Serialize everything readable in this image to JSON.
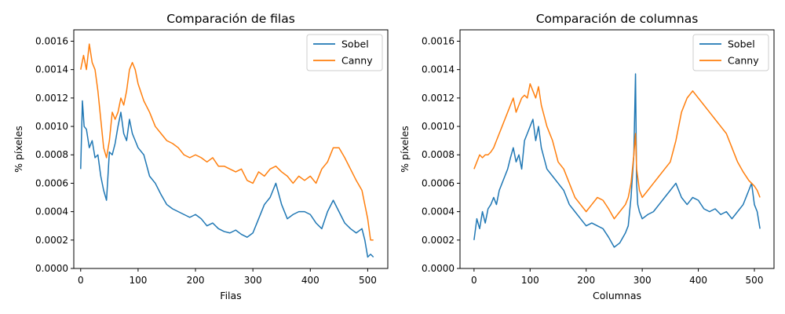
{
  "chart_data": [
    {
      "type": "line",
      "title": "Comparación de filas",
      "xlabel": "Filas",
      "ylabel": "% píxeles",
      "xlim": [
        -12,
        535
      ],
      "ylim": [
        0,
        0.00168
      ],
      "xticks": [
        0,
        100,
        200,
        300,
        400,
        500
      ],
      "yticks": [
        0,
        0.0002,
        0.0004,
        0.0006,
        0.0008,
        0.001,
        0.0012,
        0.0014,
        0.0016
      ],
      "ytick_labels": [
        "0.0000",
        "0.0002",
        "0.0004",
        "0.0006",
        "0.0008",
        "0.0010",
        "0.0012",
        "0.0014",
        "0.0016"
      ],
      "legend": "top-right",
      "series": [
        {
          "name": "Sobel",
          "color": "#1f77b4",
          "x": [
            0,
            3,
            6,
            10,
            15,
            20,
            25,
            30,
            35,
            40,
            45,
            50,
            55,
            60,
            65,
            70,
            75,
            80,
            85,
            90,
            95,
            100,
            110,
            120,
            130,
            140,
            150,
            160,
            170,
            180,
            190,
            200,
            210,
            220,
            230,
            240,
            250,
            260,
            270,
            280,
            290,
            300,
            310,
            320,
            330,
            340,
            350,
            360,
            370,
            380,
            390,
            400,
            410,
            420,
            430,
            440,
            450,
            460,
            470,
            480,
            490,
            495,
            500,
            505,
            510
          ],
          "y": [
            0.0007,
            0.00118,
            0.001,
            0.00098,
            0.00085,
            0.0009,
            0.00078,
            0.0008,
            0.00065,
            0.00055,
            0.00048,
            0.00082,
            0.0008,
            0.00088,
            0.001,
            0.0011,
            0.00095,
            0.0009,
            0.00105,
            0.00095,
            0.0009,
            0.00085,
            0.0008,
            0.00065,
            0.0006,
            0.00052,
            0.00045,
            0.00042,
            0.0004,
            0.00038,
            0.00036,
            0.00038,
            0.00035,
            0.0003,
            0.00032,
            0.00028,
            0.00026,
            0.00025,
            0.00027,
            0.00024,
            0.00022,
            0.00025,
            0.00035,
            0.00045,
            0.0005,
            0.0006,
            0.00045,
            0.00035,
            0.00038,
            0.0004,
            0.0004,
            0.00038,
            0.00032,
            0.00028,
            0.0004,
            0.00048,
            0.0004,
            0.00032,
            0.00028,
            0.00025,
            0.00028,
            0.0002,
            8e-05,
            0.0001,
            8e-05
          ]
        },
        {
          "name": "Canny",
          "color": "#ff7f0e",
          "x": [
            0,
            5,
            10,
            15,
            20,
            25,
            30,
            35,
            40,
            45,
            50,
            55,
            60,
            65,
            70,
            75,
            80,
            85,
            90,
            95,
            100,
            110,
            120,
            130,
            140,
            150,
            160,
            170,
            180,
            190,
            200,
            210,
            220,
            230,
            240,
            250,
            260,
            270,
            280,
            290,
            300,
            310,
            320,
            330,
            340,
            350,
            360,
            370,
            380,
            390,
            400,
            410,
            420,
            430,
            440,
            450,
            460,
            470,
            480,
            490,
            495,
            500,
            505,
            510
          ],
          "y": [
            0.0014,
            0.0015,
            0.0014,
            0.00158,
            0.00145,
            0.0014,
            0.00125,
            0.00105,
            0.00085,
            0.00078,
            0.0009,
            0.0011,
            0.00105,
            0.0011,
            0.0012,
            0.00115,
            0.00125,
            0.0014,
            0.00145,
            0.0014,
            0.0013,
            0.00118,
            0.0011,
            0.001,
            0.00095,
            0.0009,
            0.00088,
            0.00085,
            0.0008,
            0.00078,
            0.0008,
            0.00078,
            0.00075,
            0.00078,
            0.00072,
            0.00072,
            0.0007,
            0.00068,
            0.0007,
            0.00062,
            0.0006,
            0.00068,
            0.00065,
            0.0007,
            0.00072,
            0.00068,
            0.00065,
            0.0006,
            0.00065,
            0.00062,
            0.00065,
            0.0006,
            0.0007,
            0.00075,
            0.00085,
            0.00085,
            0.00078,
            0.0007,
            0.00062,
            0.00055,
            0.00045,
            0.00035,
            0.0002,
            0.0002
          ]
        }
      ]
    },
    {
      "type": "line",
      "title": "Comparación de columnas",
      "xlabel": "Columnas",
      "ylabel": "% píxeles",
      "xlim": [
        -25,
        535
      ],
      "ylim": [
        0,
        0.00168
      ],
      "xticks": [
        0,
        100,
        200,
        300,
        400,
        500
      ],
      "yticks": [
        0,
        0.0002,
        0.0004,
        0.0006,
        0.0008,
        0.001,
        0.0012,
        0.0014,
        0.0016
      ],
      "ytick_labels": [
        "0.0000",
        "0.0002",
        "0.0004",
        "0.0006",
        "0.0008",
        "0.0010",
        "0.0012",
        "0.0014",
        "0.0016"
      ],
      "legend": "top-right",
      "series": [
        {
          "name": "Sobel",
          "color": "#1f77b4",
          "x": [
            0,
            5,
            10,
            15,
            20,
            25,
            30,
            35,
            40,
            45,
            50,
            55,
            60,
            65,
            70,
            75,
            80,
            85,
            90,
            95,
            100,
            105,
            110,
            115,
            120,
            130,
            140,
            150,
            160,
            170,
            180,
            190,
            200,
            210,
            220,
            230,
            240,
            250,
            260,
            270,
            275,
            280,
            285,
            288,
            290,
            292,
            295,
            300,
            310,
            320,
            330,
            340,
            350,
            360,
            370,
            380,
            390,
            400,
            410,
            420,
            430,
            440,
            450,
            460,
            470,
            480,
            490,
            495,
            500,
            505,
            510
          ],
          "y": [
            0.0002,
            0.00035,
            0.00028,
            0.0004,
            0.00032,
            0.00042,
            0.00045,
            0.0005,
            0.00045,
            0.00055,
            0.0006,
            0.00065,
            0.0007,
            0.00078,
            0.00085,
            0.00075,
            0.0008,
            0.0007,
            0.0009,
            0.00095,
            0.001,
            0.00105,
            0.0009,
            0.001,
            0.00085,
            0.0007,
            0.00065,
            0.0006,
            0.00055,
            0.00045,
            0.0004,
            0.00035,
            0.0003,
            0.00032,
            0.0003,
            0.00028,
            0.00022,
            0.00015,
            0.00018,
            0.00025,
            0.0003,
            0.0005,
            0.0008,
            0.00137,
            0.0006,
            0.00045,
            0.0004,
            0.00035,
            0.00038,
            0.0004,
            0.00045,
            0.0005,
            0.00055,
            0.0006,
            0.0005,
            0.00045,
            0.0005,
            0.00048,
            0.00042,
            0.0004,
            0.00042,
            0.00038,
            0.0004,
            0.00035,
            0.0004,
            0.00045,
            0.00055,
            0.0006,
            0.00045,
            0.0004,
            0.00028
          ]
        },
        {
          "name": "Canny",
          "color": "#ff7f0e",
          "x": [
            0,
            5,
            10,
            15,
            20,
            25,
            30,
            35,
            40,
            45,
            50,
            55,
            60,
            65,
            70,
            75,
            80,
            85,
            90,
            95,
            100,
            105,
            110,
            115,
            120,
            130,
            140,
            150,
            160,
            170,
            180,
            190,
            200,
            210,
            220,
            230,
            240,
            250,
            260,
            270,
            275,
            280,
            285,
            288,
            290,
            295,
            300,
            310,
            320,
            330,
            340,
            350,
            360,
            370,
            380,
            390,
            400,
            410,
            420,
            430,
            440,
            450,
            460,
            470,
            480,
            490,
            495,
            500,
            505,
            510
          ],
          "y": [
            0.0007,
            0.00075,
            0.0008,
            0.00078,
            0.0008,
            0.0008,
            0.00082,
            0.00085,
            0.0009,
            0.00095,
            0.001,
            0.00105,
            0.0011,
            0.00115,
            0.0012,
            0.0011,
            0.00115,
            0.0012,
            0.00122,
            0.0012,
            0.0013,
            0.00125,
            0.0012,
            0.00128,
            0.00115,
            0.001,
            0.0009,
            0.00075,
            0.0007,
            0.0006,
            0.0005,
            0.00045,
            0.0004,
            0.00045,
            0.0005,
            0.00048,
            0.00042,
            0.00035,
            0.0004,
            0.00045,
            0.0005,
            0.0006,
            0.0008,
            0.00095,
            0.0007,
            0.00055,
            0.0005,
            0.00055,
            0.0006,
            0.00065,
            0.0007,
            0.00075,
            0.0009,
            0.0011,
            0.0012,
            0.00125,
            0.0012,
            0.00115,
            0.0011,
            0.00105,
            0.001,
            0.00095,
            0.00085,
            0.00075,
            0.00068,
            0.00062,
            0.0006,
            0.00058,
            0.00055,
            0.0005
          ]
        }
      ]
    }
  ]
}
